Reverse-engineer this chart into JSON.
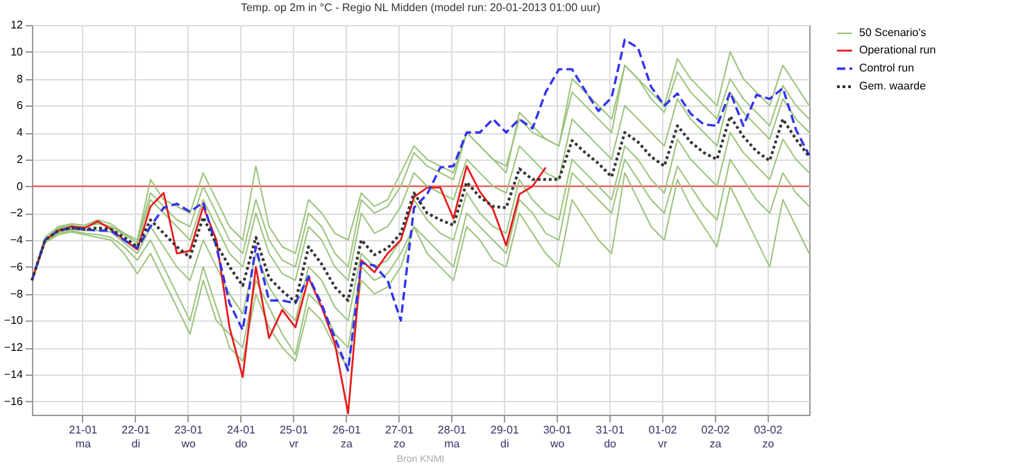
{
  "chart_data": {
    "type": "line",
    "title": "Temp. op 2m in °C - Regio NL Midden (model run: 20-01-2013 01:00 uur)",
    "annotations": [
      "Bron KNMI"
    ],
    "x": [
      "2013-01-20T01:00",
      "2013-01-20T07:00",
      "2013-01-20T13:00",
      "2013-01-20T19:00",
      "2013-01-21T01:00",
      "2013-01-21T07:00",
      "2013-01-21T13:00",
      "2013-01-21T19:00",
      "2013-01-22T01:00",
      "2013-01-22T07:00",
      "2013-01-22T13:00",
      "2013-01-22T19:00",
      "2013-01-23T01:00",
      "2013-01-23T07:00",
      "2013-01-23T13:00",
      "2013-01-23T19:00",
      "2013-01-24T01:00",
      "2013-01-24T07:00",
      "2013-01-24T13:00",
      "2013-01-24T19:00",
      "2013-01-25T01:00",
      "2013-01-25T07:00",
      "2013-01-25T13:00",
      "2013-01-25T19:00",
      "2013-01-26T01:00",
      "2013-01-26T07:00",
      "2013-01-26T13:00",
      "2013-01-26T19:00",
      "2013-01-27T01:00",
      "2013-01-27T07:00",
      "2013-01-27T13:00",
      "2013-01-27T19:00",
      "2013-01-28T01:00",
      "2013-01-28T07:00",
      "2013-01-28T13:00",
      "2013-01-28T19:00",
      "2013-01-29T01:00",
      "2013-01-29T07:00",
      "2013-01-29T13:00",
      "2013-01-29T19:00",
      "2013-01-30T01:00",
      "2013-01-30T07:00",
      "2013-01-30T13:00",
      "2013-01-30T19:00",
      "2013-01-31T01:00",
      "2013-01-31T07:00",
      "2013-01-31T13:00",
      "2013-01-31T19:00",
      "2013-02-01T01:00",
      "2013-02-01T07:00",
      "2013-02-01T13:00",
      "2013-02-01T19:00",
      "2013-02-02T01:00",
      "2013-02-02T07:00",
      "2013-02-02T13:00",
      "2013-02-02T19:00",
      "2013-02-03T01:00",
      "2013-02-03T07:00",
      "2013-02-03T13:00",
      "2013-02-03T19:00"
    ],
    "xlim": [
      "2013-01-20T01:00",
      "2013-02-03T19:00"
    ],
    "xticks": [
      {
        "value": "2013-01-21",
        "label": "21-01\nma"
      },
      {
        "value": "2013-01-22",
        "label": "22-01\ndi"
      },
      {
        "value": "2013-01-23",
        "label": "23-01\nwo"
      },
      {
        "value": "2013-01-24",
        "label": "24-01\ndo"
      },
      {
        "value": "2013-01-25",
        "label": "25-01\nvr"
      },
      {
        "value": "2013-01-26",
        "label": "26-01\nza"
      },
      {
        "value": "2013-01-27",
        "label": "27-01\nzo"
      },
      {
        "value": "2013-01-28",
        "label": "28-01\nma"
      },
      {
        "value": "2013-01-29",
        "label": "29-01\ndi"
      },
      {
        "value": "2013-01-30",
        "label": "30-01\nwo"
      },
      {
        "value": "2013-01-31",
        "label": "31-01\ndo"
      },
      {
        "value": "2013-02-01",
        "label": "01-02\nvr"
      },
      {
        "value": "2013-02-02",
        "label": "02-02\nza"
      },
      {
        "value": "2013-02-03",
        "label": "03-02\nzo"
      }
    ],
    "ylim": [
      -17,
      12
    ],
    "yticks": [
      -16,
      -14,
      -12,
      -10,
      -8,
      -6,
      -4,
      -2,
      0,
      2,
      4,
      6,
      8,
      10,
      12
    ],
    "grid": true,
    "legend": "top right",
    "ref_lines": [
      {
        "axis": "y",
        "value": 0,
        "color": "#e8504a"
      }
    ],
    "series": [
      {
        "name": "50 Scenario's",
        "color": "#9cc47c",
        "line_style": "solid",
        "values": [
          -7,
          -3.8,
          -3,
          -2.8,
          -2.9,
          -2.5,
          -2.8,
          -3.5,
          -4,
          0.5,
          -1,
          -1.5,
          -2,
          1,
          -1,
          -3,
          -4,
          1.5,
          -3,
          -4.5,
          -5,
          -1,
          -2,
          -3.5,
          -4,
          -0.5,
          -1.5,
          -1,
          1,
          3,
          2,
          1.5,
          1,
          4,
          3,
          2,
          1.5,
          5,
          4,
          3.5,
          3,
          7,
          6,
          5,
          4,
          9,
          8,
          7,
          6,
          9.5,
          8,
          7,
          6,
          10,
          8,
          7,
          6,
          9,
          7.5,
          6
        ]
      },
      {
        "color": "#9cc47c",
        "line_style": "solid",
        "values": [
          -7,
          -4.1,
          -3.5,
          -3.3,
          -3.5,
          -3.6,
          -3.8,
          -4.5,
          -5.5,
          -4,
          -6,
          -8,
          -10,
          -6,
          -9,
          -12,
          -13,
          -8,
          -10.5,
          -12,
          -13,
          -9,
          -10,
          -12,
          -13.5,
          -7,
          -8,
          -7.5,
          -6,
          -3,
          -5,
          -6,
          -7,
          -3,
          -4,
          -5.5,
          -6,
          -2,
          -3.5,
          -5,
          -6,
          -1,
          -2.5,
          -4,
          -5,
          1,
          -1,
          -3,
          -4,
          0.5,
          -1.5,
          -3,
          -4.5,
          0,
          -2,
          -4,
          -6,
          -1,
          -3,
          -5
        ]
      },
      {
        "color": "#9cc47c",
        "line_style": "solid",
        "values": [
          -7,
          -4,
          -3.2,
          -3,
          -3,
          -2.8,
          -3,
          -3.6,
          -4.2,
          -1,
          -2,
          -3,
          -4,
          -1,
          -3,
          -5,
          -6,
          -2,
          -5,
          -6.5,
          -7,
          -3,
          -4,
          -6,
          -7,
          -2,
          -3.5,
          -3,
          -1.5,
          1,
          0,
          -0.5,
          -1,
          2,
          1,
          0,
          -0.5,
          3,
          2,
          1,
          0.5,
          5,
          4,
          3,
          2,
          6,
          5,
          4,
          3,
          6.5,
          5,
          4,
          3,
          7,
          5.5,
          4.5,
          3.5,
          6.5,
          5,
          4
        ]
      },
      {
        "color": "#9cc47c",
        "line_style": "solid",
        "values": [
          -7,
          -3.9,
          -3.4,
          -3.2,
          -3.3,
          -3.3,
          -3.4,
          -4.2,
          -5,
          -3,
          -4.5,
          -6,
          -7,
          -4,
          -6,
          -8,
          -9.5,
          -5,
          -7.5,
          -9,
          -10,
          -6,
          -7,
          -9,
          -10,
          -5,
          -6,
          -5.5,
          -4,
          -1,
          -2.5,
          -3.5,
          -4,
          -0.5,
          -2,
          -3,
          -3.5,
          0.5,
          -1,
          -2,
          -2.5,
          2,
          1,
          0,
          -1,
          3,
          2,
          0.5,
          -0.5,
          3.5,
          2,
          1,
          0,
          4,
          2.5,
          1.5,
          0.5,
          3.5,
          2,
          1
        ]
      },
      {
        "color": "#9cc47c",
        "line_style": "solid",
        "values": [
          -7,
          -4,
          -3.1,
          -2.9,
          -3.1,
          -2.7,
          -3,
          -3.5,
          -4,
          -0.5,
          -1.5,
          -2.5,
          -3,
          0,
          -2,
          -4,
          -5,
          -1,
          -4,
          -5.5,
          -6,
          -2,
          -3,
          -5,
          -6,
          -1,
          -2,
          -1.5,
          0,
          2.5,
          1.5,
          1,
          0.5,
          4,
          3,
          2,
          1,
          5.5,
          4.5,
          3.5,
          3,
          8,
          7,
          6,
          5,
          9,
          8,
          6.5,
          5.5,
          8.5,
          7,
          6,
          5,
          8,
          6.5,
          5.5,
          4.5,
          7.5,
          6,
          5
        ]
      },
      {
        "color": "#9cc47c",
        "line_style": "solid",
        "values": [
          -7,
          -4.2,
          -3.6,
          -3.4,
          -3.6,
          -3.8,
          -4,
          -5,
          -6.5,
          -5,
          -7,
          -9,
          -11,
          -7,
          -10,
          -11,
          -12,
          -7,
          -9,
          -11,
          -12.5,
          -8,
          -9,
          -11,
          -12,
          -6,
          -7,
          -6.5,
          -5,
          -3,
          -4,
          -5,
          -6,
          -2,
          -3,
          -4,
          -5,
          -1,
          -2,
          -3.5,
          -4,
          1,
          0,
          -1,
          -2,
          2,
          0.5,
          -1,
          -2,
          1.5,
          0,
          -1.5,
          -2.5,
          2,
          0.5,
          -1,
          -2,
          1,
          -0.5,
          -1.5
        ]
      },
      {
        "name": "Operational run",
        "color": "#e8191c",
        "line_style": "solid",
        "values": [
          -7,
          -4,
          -3.3,
          -3,
          -3.1,
          -2.6,
          -3.2,
          -4,
          -4.7,
          -1.5,
          -0.5,
          -5,
          -4.8,
          -1.5,
          -4,
          -10.5,
          -14.2,
          -6,
          -11.3,
          -9.2,
          -10.5,
          -6.8,
          -9,
          -11.7,
          -16.9,
          -5.5,
          -6.4,
          -5,
          -4,
          -0.8,
          -0.1,
          -0.1,
          -2.4,
          1.5,
          -0.4,
          -1.7,
          -4.4,
          -0.6,
          0,
          1.4,
          null,
          null,
          null,
          null,
          null,
          null,
          null,
          null,
          null,
          null,
          null,
          null,
          null,
          null,
          null,
          null,
          null,
          null,
          null,
          null
        ]
      },
      {
        "name": "Control run",
        "color": "#3333ee",
        "line_style": "dashed",
        "values": [
          -7,
          -4,
          -3.3,
          -3.1,
          -3.2,
          -3.3,
          -3.3,
          -4,
          -4.6,
          -3,
          -1.6,
          -1.3,
          -1.9,
          -1.2,
          -4.5,
          -8.7,
          -10.7,
          -4.5,
          -8.5,
          -8.5,
          -8.7,
          -6.7,
          -8.8,
          -11.3,
          -13.7,
          -5.7,
          -5.9,
          -7,
          -10,
          -1.6,
          -0.6,
          1.4,
          1.5,
          4,
          4,
          5,
          4,
          5,
          4.3,
          7,
          8.7,
          8.7,
          7.1,
          5.6,
          6.6,
          10.9,
          10.3,
          7.4,
          6,
          6.9,
          5.4,
          4.6,
          4.5,
          7,
          4.5,
          6.8,
          6.5,
          7.3,
          4.2,
          2.3
        ]
      },
      {
        "name": "Gem. waarde",
        "color": "#333333",
        "line_style": "dotted",
        "values": [
          -7,
          -4,
          -3.3,
          -3.1,
          -3.2,
          -3.1,
          -3.2,
          -3.8,
          -4.5,
          -2.5,
          -3.5,
          -4.5,
          -5.3,
          -2.3,
          -4.3,
          -6,
          -7.4,
          -3.8,
          -6.8,
          -7.8,
          -8.6,
          -4.5,
          -5.8,
          -7.5,
          -8.5,
          -4,
          -5.1,
          -4.6,
          -3.5,
          -0.5,
          -2,
          -2.5,
          -2.9,
          0.3,
          -0.8,
          -1.5,
          -1.6,
          1.3,
          0.5,
          0.5,
          0.5,
          3.4,
          2.5,
          1.7,
          0.7,
          4,
          3.3,
          2.2,
          1.5,
          4.5,
          3.3,
          2.5,
          2,
          5.2,
          3.7,
          2.6,
          1.9,
          5,
          3.5,
          2.2
        ]
      }
    ]
  }
}
